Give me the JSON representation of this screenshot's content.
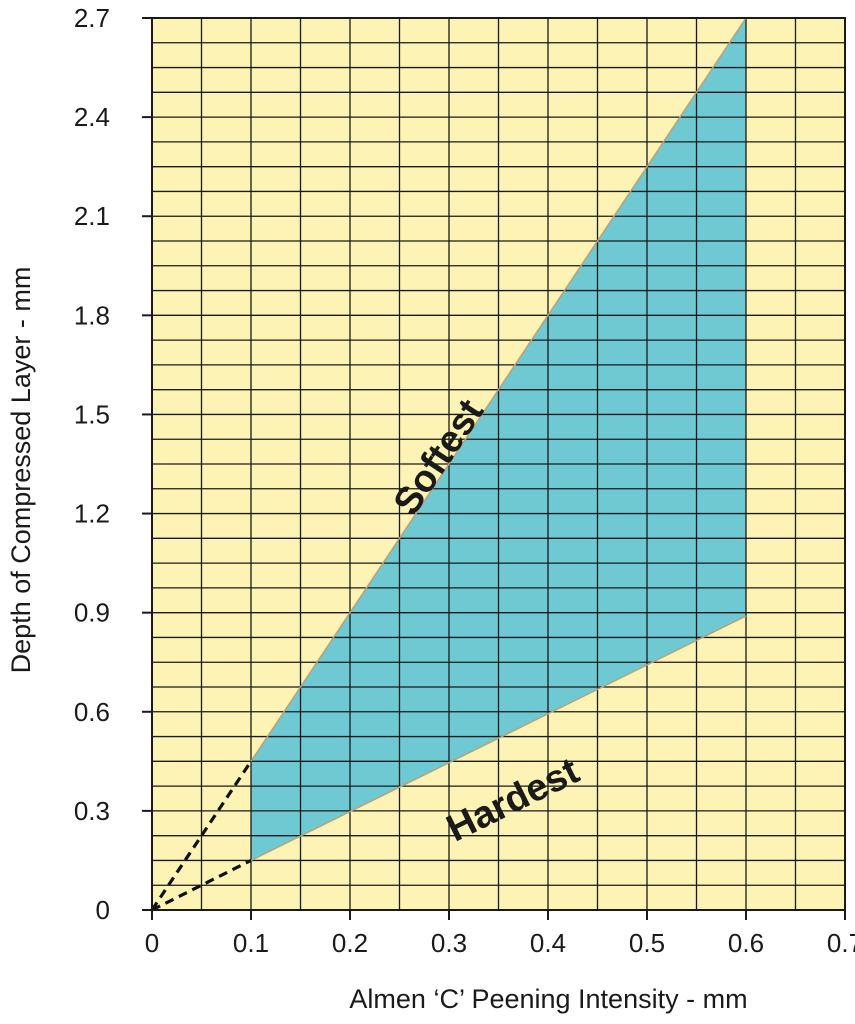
{
  "chart_data": {
    "type": "area",
    "xlabel": "Almen ‘C’ Peening Intensity - mm",
    "ylabel": "Depth of Compressed Layer - mm",
    "xlim": [
      0,
      0.7
    ],
    "ylim": [
      0,
      2.7
    ],
    "x_ticks": [
      "0",
      "0.1",
      "0.2",
      "0.3",
      "0.4",
      "0.5",
      "0.6",
      "0.7"
    ],
    "y_ticks": [
      "0",
      "0.3",
      "0.6",
      "0.9",
      "1.2",
      "1.5",
      "1.8",
      "2.1",
      "2.4",
      "2.7"
    ],
    "grid": true,
    "grid_x_step": 0.05,
    "grid_y_step": 0.075,
    "series": [
      {
        "name": "Softest",
        "x": [
          0.1,
          0.6
        ],
        "y": [
          0.45,
          2.7
        ]
      },
      {
        "name": "Hardest",
        "x": [
          0.1,
          0.6
        ],
        "y": [
          0.15,
          0.89
        ]
      }
    ],
    "extrapolation": {
      "style": "dashed",
      "lines": [
        {
          "x": [
            0,
            0.1
          ],
          "y": [
            0,
            0.45
          ]
        },
        {
          "x": [
            0,
            0.1
          ],
          "y": [
            0,
            0.15
          ]
        }
      ]
    },
    "colors": {
      "background": "#fdf3b4",
      "region": "#6ec9d3",
      "grid": "#1a1a1a"
    }
  }
}
